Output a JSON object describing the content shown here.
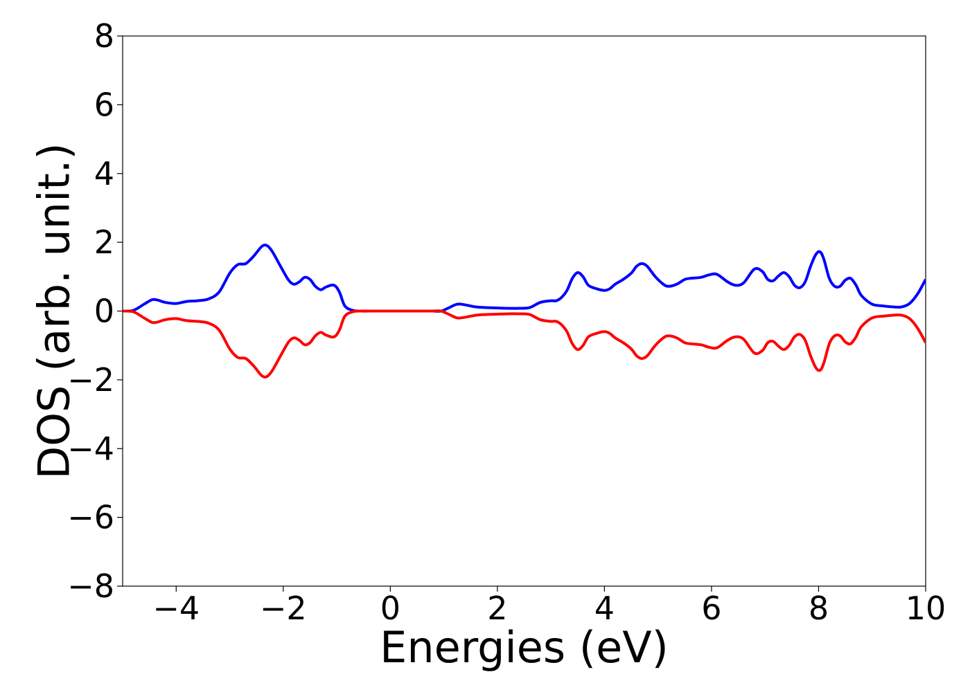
{
  "chart_data": {
    "type": "line",
    "title": "",
    "xlabel": "Energies (eV)",
    "ylabel": "DOS (arb. unit.)",
    "xlim": [
      -5,
      10
    ],
    "ylim": [
      -8,
      8
    ],
    "xticks": [
      -4,
      -2,
      0,
      2,
      4,
      6,
      8,
      10
    ],
    "xtick_labels": [
      "−4",
      "−2",
      "0",
      "2",
      "4",
      "6",
      "8",
      "10"
    ],
    "yticks": [
      8,
      6,
      4,
      2,
      0,
      -2,
      -4,
      -6,
      -8
    ],
    "ytick_labels": [
      "8",
      "6",
      "4",
      "2",
      "0",
      "−2",
      "−4",
      "−6",
      "−8"
    ],
    "grid": false,
    "legend": false,
    "series": [
      {
        "color": "#0000ff",
        "x": [
          -5.0,
          -4.8,
          -4.6,
          -4.45,
          -4.35,
          -4.2,
          -4.0,
          -3.8,
          -3.6,
          -3.4,
          -3.2,
          -3.0,
          -2.85,
          -2.7,
          -2.55,
          -2.4,
          -2.3,
          -2.2,
          -2.05,
          -1.9,
          -1.8,
          -1.7,
          -1.6,
          -1.5,
          -1.4,
          -1.3,
          -1.2,
          -1.05,
          -0.95,
          -0.85,
          -0.7,
          -0.55,
          -0.3,
          0.0,
          0.3,
          0.6,
          0.8,
          0.95,
          1.1,
          1.25,
          1.4,
          1.6,
          1.8,
          2.0,
          2.2,
          2.4,
          2.6,
          2.8,
          3.0,
          3.1,
          3.2,
          3.3,
          3.4,
          3.5,
          3.6,
          3.7,
          3.85,
          4.0,
          4.1,
          4.2,
          4.35,
          4.5,
          4.6,
          4.7,
          4.8,
          4.95,
          5.1,
          5.2,
          5.35,
          5.5,
          5.6,
          5.8,
          5.95,
          6.1,
          6.3,
          6.45,
          6.6,
          6.8,
          6.95,
          7.05,
          7.15,
          7.25,
          7.35,
          7.45,
          7.55,
          7.65,
          7.75,
          7.85,
          7.95,
          8.03,
          8.1,
          8.2,
          8.3,
          8.4,
          8.5,
          8.6,
          8.7,
          8.8,
          9.0,
          9.2,
          9.4,
          9.55,
          9.7,
          9.85,
          10.0
        ],
        "values": [
          0.0,
          0.02,
          0.2,
          0.33,
          0.32,
          0.25,
          0.22,
          0.28,
          0.3,
          0.35,
          0.55,
          1.1,
          1.35,
          1.38,
          1.6,
          1.88,
          1.9,
          1.72,
          1.3,
          0.9,
          0.78,
          0.85,
          0.98,
          0.92,
          0.72,
          0.62,
          0.7,
          0.75,
          0.55,
          0.15,
          0.02,
          0.0,
          0.0,
          0.0,
          0.0,
          0.0,
          0.0,
          0.0,
          0.1,
          0.2,
          0.18,
          0.12,
          0.1,
          0.09,
          0.08,
          0.08,
          0.1,
          0.25,
          0.3,
          0.3,
          0.4,
          0.6,
          0.95,
          1.12,
          1.0,
          0.75,
          0.65,
          0.6,
          0.65,
          0.78,
          0.92,
          1.1,
          1.3,
          1.38,
          1.3,
          1.0,
          0.78,
          0.72,
          0.78,
          0.92,
          0.95,
          0.98,
          1.05,
          1.07,
          0.85,
          0.75,
          0.82,
          1.22,
          1.15,
          0.92,
          0.88,
          1.02,
          1.12,
          1.0,
          0.75,
          0.68,
          0.85,
          1.3,
          1.65,
          1.72,
          1.5,
          0.95,
          0.72,
          0.72,
          0.9,
          0.95,
          0.75,
          0.45,
          0.2,
          0.15,
          0.12,
          0.12,
          0.22,
          0.5,
          0.92
        ]
      },
      {
        "color": "#ff0000",
        "x": [
          -5.0,
          -4.8,
          -4.6,
          -4.45,
          -4.35,
          -4.2,
          -4.0,
          -3.8,
          -3.6,
          -3.4,
          -3.2,
          -3.0,
          -2.85,
          -2.7,
          -2.55,
          -2.4,
          -2.3,
          -2.2,
          -2.05,
          -1.9,
          -1.8,
          -1.7,
          -1.6,
          -1.5,
          -1.4,
          -1.3,
          -1.2,
          -1.05,
          -0.95,
          -0.85,
          -0.7,
          -0.55,
          -0.3,
          0.0,
          0.3,
          0.6,
          0.8,
          0.95,
          1.1,
          1.25,
          1.4,
          1.6,
          1.8,
          2.0,
          2.2,
          2.4,
          2.6,
          2.8,
          3.0,
          3.1,
          3.2,
          3.3,
          3.4,
          3.5,
          3.6,
          3.7,
          3.85,
          4.0,
          4.1,
          4.2,
          4.35,
          4.5,
          4.6,
          4.7,
          4.8,
          4.95,
          5.1,
          5.2,
          5.35,
          5.5,
          5.6,
          5.8,
          5.95,
          6.1,
          6.3,
          6.45,
          6.6,
          6.8,
          6.95,
          7.05,
          7.15,
          7.25,
          7.35,
          7.45,
          7.55,
          7.65,
          7.75,
          7.85,
          7.95,
          8.03,
          8.1,
          8.2,
          8.3,
          8.4,
          8.5,
          8.6,
          8.7,
          8.8,
          9.0,
          9.2,
          9.4,
          9.55,
          9.7,
          9.85,
          10.0
        ],
        "values": [
          0.0,
          -0.02,
          -0.2,
          -0.33,
          -0.32,
          -0.25,
          -0.22,
          -0.28,
          -0.3,
          -0.35,
          -0.55,
          -1.1,
          -1.35,
          -1.38,
          -1.6,
          -1.88,
          -1.9,
          -1.72,
          -1.3,
          -0.9,
          -0.78,
          -0.85,
          -0.98,
          -0.92,
          -0.72,
          -0.62,
          -0.7,
          -0.75,
          -0.55,
          -0.15,
          -0.02,
          0.0,
          0.0,
          0.0,
          0.0,
          0.0,
          0.0,
          0.0,
          -0.1,
          -0.2,
          -0.18,
          -0.12,
          -0.1,
          -0.09,
          -0.08,
          -0.08,
          -0.1,
          -0.25,
          -0.3,
          -0.3,
          -0.4,
          -0.6,
          -0.95,
          -1.12,
          -1.0,
          -0.75,
          -0.65,
          -0.6,
          -0.65,
          -0.78,
          -0.92,
          -1.1,
          -1.3,
          -1.38,
          -1.3,
          -1.0,
          -0.78,
          -0.72,
          -0.78,
          -0.92,
          -0.95,
          -0.98,
          -1.05,
          -1.07,
          -0.85,
          -0.75,
          -0.82,
          -1.22,
          -1.15,
          -0.92,
          -0.88,
          -1.02,
          -1.12,
          -1.0,
          -0.75,
          -0.68,
          -0.85,
          -1.3,
          -1.65,
          -1.72,
          -1.5,
          -0.95,
          -0.72,
          -0.72,
          -0.9,
          -0.95,
          -0.75,
          -0.45,
          -0.2,
          -0.15,
          -0.12,
          -0.12,
          -0.22,
          -0.5,
          -0.92
        ]
      }
    ]
  }
}
